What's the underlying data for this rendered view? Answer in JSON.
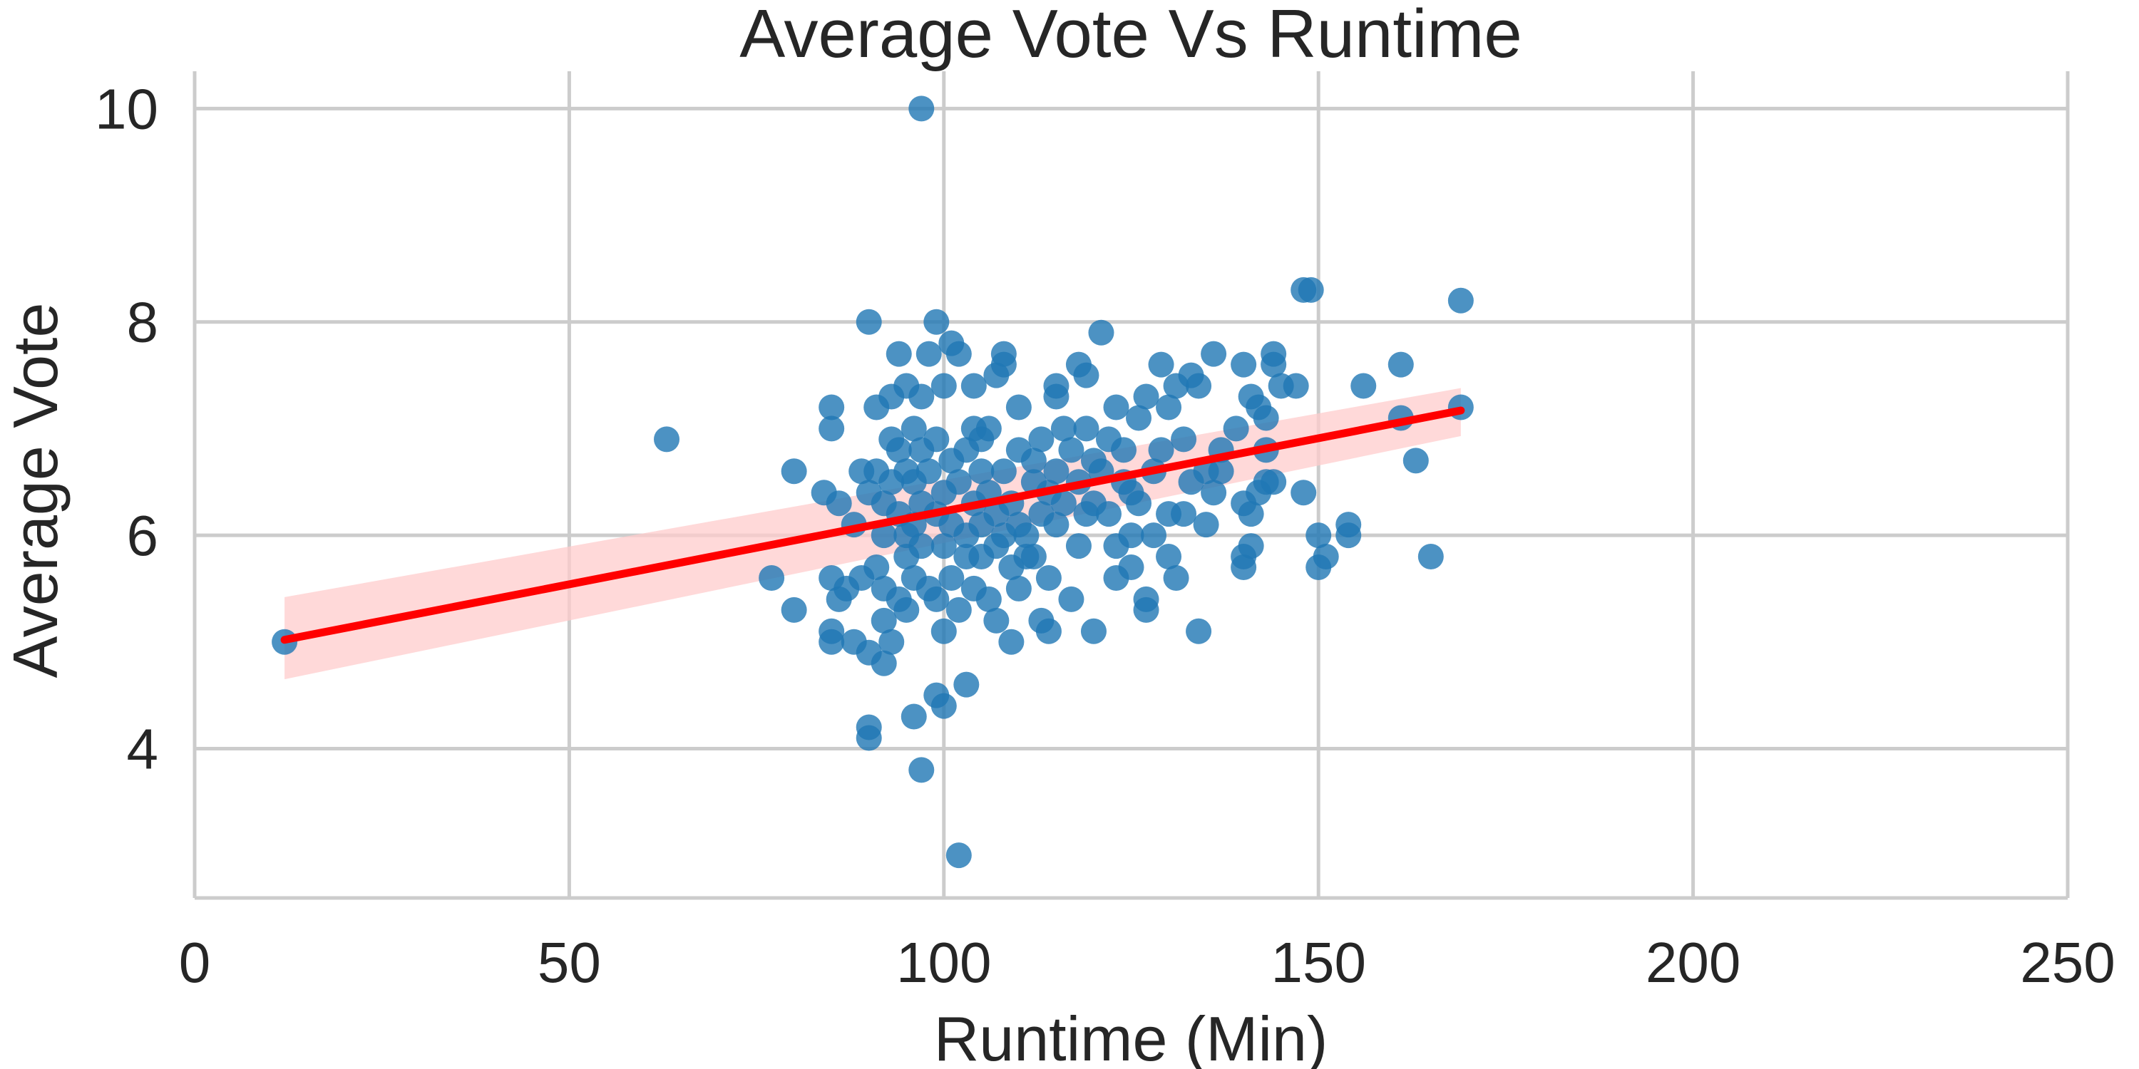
{
  "chart_data": {
    "type": "scatter",
    "title": "Average Vote Vs Runtime",
    "xlabel": "Runtime (Min)",
    "ylabel": "Average Vote",
    "xlim": [
      0,
      250
    ],
    "ylim": [
      2.6,
      10.35
    ],
    "xticks": [
      0,
      50,
      100,
      150,
      200,
      250
    ],
    "yticks": [
      4,
      6,
      8,
      10
    ],
    "grid": true,
    "colors": {
      "points": "#1f77b4",
      "regression_line": "#ff0000",
      "confidence_band": "#ffcccc",
      "grid": "#cccccc"
    },
    "regression": {
      "x": [
        12,
        169
      ],
      "y": [
        5.02,
        7.17
      ],
      "ci_lower": [
        4.65,
        6.93
      ],
      "ci_upper": [
        5.42,
        7.38
      ]
    },
    "points": [
      [
        12,
        5.0
      ],
      [
        63,
        6.9
      ],
      [
        77,
        5.6
      ],
      [
        80,
        5.3
      ],
      [
        80,
        6.6
      ],
      [
        84,
        6.4
      ],
      [
        85,
        7.2
      ],
      [
        85,
        7.0
      ],
      [
        85,
        5.6
      ],
      [
        85,
        5.1
      ],
      [
        85,
        5.0
      ],
      [
        86,
        6.3
      ],
      [
        86,
        5.4
      ],
      [
        87,
        5.5
      ],
      [
        88,
        6.1
      ],
      [
        88,
        5.0
      ],
      [
        89,
        6.6
      ],
      [
        89,
        5.6
      ],
      [
        90,
        4.9
      ],
      [
        90,
        6.4
      ],
      [
        90,
        4.2
      ],
      [
        90,
        4.1
      ],
      [
        90,
        8.0
      ],
      [
        91,
        6.6
      ],
      [
        91,
        5.7
      ],
      [
        91,
        7.2
      ],
      [
        92,
        6.0
      ],
      [
        92,
        5.5
      ],
      [
        92,
        5.2
      ],
      [
        92,
        4.8
      ],
      [
        92,
        6.3
      ],
      [
        93,
        6.5
      ],
      [
        93,
        6.9
      ],
      [
        93,
        7.3
      ],
      [
        93,
        5.0
      ],
      [
        94,
        5.4
      ],
      [
        94,
        6.2
      ],
      [
        94,
        6.8
      ],
      [
        94,
        7.7
      ],
      [
        95,
        6.0
      ],
      [
        95,
        6.6
      ],
      [
        95,
        5.8
      ],
      [
        95,
        5.3
      ],
      [
        95,
        7.4
      ],
      [
        96,
        6.5
      ],
      [
        96,
        7.0
      ],
      [
        96,
        6.1
      ],
      [
        96,
        5.6
      ],
      [
        96,
        4.3
      ],
      [
        97,
        6.8
      ],
      [
        97,
        6.3
      ],
      [
        97,
        5.9
      ],
      [
        97,
        3.8
      ],
      [
        97,
        10.0
      ],
      [
        97,
        7.3
      ],
      [
        98,
        6.6
      ],
      [
        98,
        5.5
      ],
      [
        98,
        7.7
      ],
      [
        99,
        6.9
      ],
      [
        99,
        6.2
      ],
      [
        99,
        5.4
      ],
      [
        99,
        8.0
      ],
      [
        99,
        4.5
      ],
      [
        100,
        6.4
      ],
      [
        100,
        7.4
      ],
      [
        100,
        5.1
      ],
      [
        100,
        4.4
      ],
      [
        100,
        5.9
      ],
      [
        101,
        6.1
      ],
      [
        101,
        6.7
      ],
      [
        101,
        7.8
      ],
      [
        101,
        5.6
      ],
      [
        102,
        6.5
      ],
      [
        102,
        5.3
      ],
      [
        102,
        3.0
      ],
      [
        102,
        7.7
      ],
      [
        103,
        6.0
      ],
      [
        103,
        6.8
      ],
      [
        103,
        5.8
      ],
      [
        103,
        4.6
      ],
      [
        104,
        6.3
      ],
      [
        104,
        7.0
      ],
      [
        104,
        5.5
      ],
      [
        104,
        7.4
      ],
      [
        105,
        6.6
      ],
      [
        105,
        6.1
      ],
      [
        105,
        5.8
      ],
      [
        105,
        6.9
      ],
      [
        106,
        6.4
      ],
      [
        106,
        5.4
      ],
      [
        106,
        7.0
      ],
      [
        107,
        6.2
      ],
      [
        107,
        5.9
      ],
      [
        107,
        5.2
      ],
      [
        107,
        7.5
      ],
      [
        108,
        6.6
      ],
      [
        108,
        6.0
      ],
      [
        108,
        7.7
      ],
      [
        108,
        7.6
      ],
      [
        109,
        6.3
      ],
      [
        109,
        5.0
      ],
      [
        109,
        5.7
      ],
      [
        110,
        6.1
      ],
      [
        110,
        5.5
      ],
      [
        110,
        6.8
      ],
      [
        110,
        7.2
      ],
      [
        111,
        6.0
      ],
      [
        111,
        5.8
      ],
      [
        112,
        6.5
      ],
      [
        112,
        6.7
      ],
      [
        112,
        5.8
      ],
      [
        113,
        6.2
      ],
      [
        113,
        5.2
      ],
      [
        113,
        6.9
      ],
      [
        114,
        6.4
      ],
      [
        114,
        5.6
      ],
      [
        114,
        5.1
      ],
      [
        115,
        6.6
      ],
      [
        115,
        7.3
      ],
      [
        115,
        7.4
      ],
      [
        115,
        6.1
      ],
      [
        116,
        6.3
      ],
      [
        116,
        7.0
      ],
      [
        117,
        6.8
      ],
      [
        117,
        5.4
      ],
      [
        118,
        6.5
      ],
      [
        118,
        7.6
      ],
      [
        118,
        5.9
      ],
      [
        119,
        6.2
      ],
      [
        119,
        7.5
      ],
      [
        119,
        7.0
      ],
      [
        120,
        6.7
      ],
      [
        120,
        5.1
      ],
      [
        120,
        6.3
      ],
      [
        121,
        7.9
      ],
      [
        121,
        6.6
      ],
      [
        122,
        6.9
      ],
      [
        122,
        6.2
      ],
      [
        123,
        7.2
      ],
      [
        123,
        5.6
      ],
      [
        123,
        5.9
      ],
      [
        124,
        6.5
      ],
      [
        124,
        6.8
      ],
      [
        125,
        6.0
      ],
      [
        125,
        5.7
      ],
      [
        125,
        6.4
      ],
      [
        126,
        7.1
      ],
      [
        126,
        6.3
      ],
      [
        127,
        7.3
      ],
      [
        127,
        5.4
      ],
      [
        127,
        5.3
      ],
      [
        128,
        6.6
      ],
      [
        128,
        6.0
      ],
      [
        129,
        7.6
      ],
      [
        129,
        6.8
      ],
      [
        130,
        7.2
      ],
      [
        130,
        5.8
      ],
      [
        130,
        6.2
      ],
      [
        131,
        7.4
      ],
      [
        131,
        5.6
      ],
      [
        132,
        6.9
      ],
      [
        132,
        6.2
      ],
      [
        133,
        7.5
      ],
      [
        133,
        6.5
      ],
      [
        134,
        7.4
      ],
      [
        134,
        5.1
      ],
      [
        135,
        6.6
      ],
      [
        135,
        6.1
      ],
      [
        136,
        7.7
      ],
      [
        136,
        6.4
      ],
      [
        137,
        6.8
      ],
      [
        137,
        6.6
      ],
      [
        139,
        7.0
      ],
      [
        140,
        7.6
      ],
      [
        140,
        5.8
      ],
      [
        140,
        5.7
      ],
      [
        140,
        6.3
      ],
      [
        141,
        7.3
      ],
      [
        141,
        6.2
      ],
      [
        141,
        5.9
      ],
      [
        142,
        7.2
      ],
      [
        142,
        6.4
      ],
      [
        143,
        6.8
      ],
      [
        143,
        7.1
      ],
      [
        143,
        6.5
      ],
      [
        144,
        7.7
      ],
      [
        144,
        7.6
      ],
      [
        144,
        6.5
      ],
      [
        145,
        7.4
      ],
      [
        147,
        7.4
      ],
      [
        148,
        8.3
      ],
      [
        148,
        6.4
      ],
      [
        149,
        8.3
      ],
      [
        150,
        6.0
      ],
      [
        150,
        5.7
      ],
      [
        151,
        5.8
      ],
      [
        154,
        6.1
      ],
      [
        154,
        6.0
      ],
      [
        156,
        7.4
      ],
      [
        161,
        7.6
      ],
      [
        161,
        7.1
      ],
      [
        163,
        6.7
      ],
      [
        165,
        5.8
      ],
      [
        169,
        8.2
      ],
      [
        169,
        7.2
      ]
    ]
  }
}
